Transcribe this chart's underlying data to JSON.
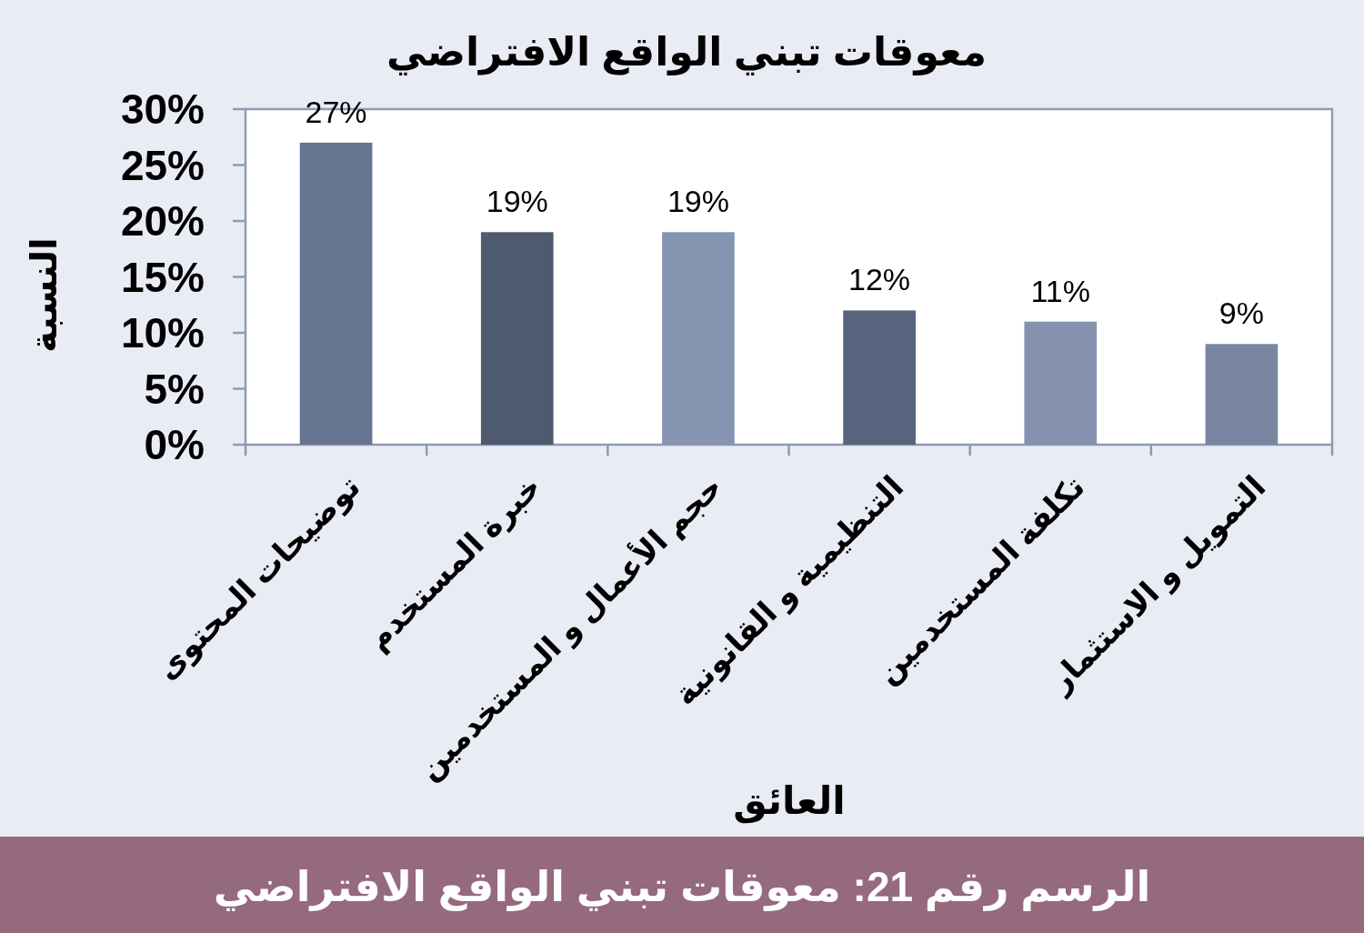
{
  "chart_data": {
    "type": "bar",
    "title": "معوقات تبني الواقع الافتراضي",
    "xlabel": "العائق",
    "ylabel": "النسبة",
    "categories": [
      "توضيحات المحتوى",
      "خبرة المستخدم",
      "حجم الأعمال و المستخدمين",
      "التنظيمية و القانونية",
      "تكلفة المستخدمين",
      "التمويل و الاستثمار"
    ],
    "values": [
      27,
      19,
      19,
      12,
      11,
      9
    ],
    "colors": [
      "#657590",
      "#4d5a70",
      "#8594b0",
      "#56647e",
      "#8591ae",
      "#7886a2"
    ],
    "value_labels": [
      "27%",
      "19%",
      "19%",
      "12%",
      "11%",
      "9%"
    ],
    "ylim": [
      0,
      30
    ],
    "yticks": [
      {
        "value": 0,
        "label": "0%"
      },
      {
        "value": 5,
        "label": "5%"
      },
      {
        "value": 10,
        "label": "10%"
      },
      {
        "value": 15,
        "label": "15%"
      },
      {
        "value": 20,
        "label": "20%"
      },
      {
        "value": 25,
        "label": "25%"
      },
      {
        "value": 30,
        "label": "30%"
      }
    ],
    "annotations": [
      "الرسم رقم 21: معوقات تبني الواقع الافتراضي"
    ]
  }
}
